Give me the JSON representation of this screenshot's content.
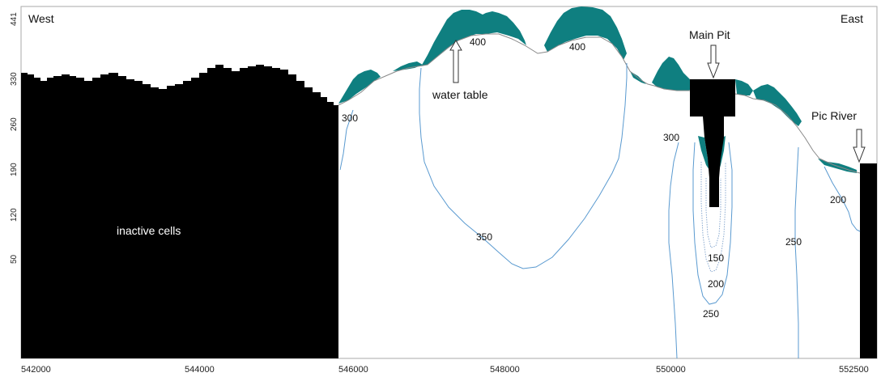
{
  "labels": {
    "west": "West",
    "east": "East",
    "inactive": "inactive cells",
    "water_table": "water table",
    "main_pit": "Main Pit",
    "pic_river": "Pic River"
  },
  "contours": {
    "c300_left": "300",
    "c400_a": "400",
    "c400_b": "400",
    "c350": "350",
    "c300_right": "300",
    "c150": "150",
    "c200_pit": "200",
    "c250_pit": "250",
    "c250_right": "250",
    "c200_right": "200"
  },
  "x_ticks": [
    "542000",
    "544000",
    "546000",
    "548000",
    "550000",
    "552500"
  ],
  "y_ticks": [
    "441",
    "330",
    "260",
    "190",
    "120",
    "50"
  ],
  "colors": {
    "inactive": "#000000",
    "saturated": "#0f7f80",
    "contour": "#5a9ad0",
    "frame": "#999999"
  }
}
